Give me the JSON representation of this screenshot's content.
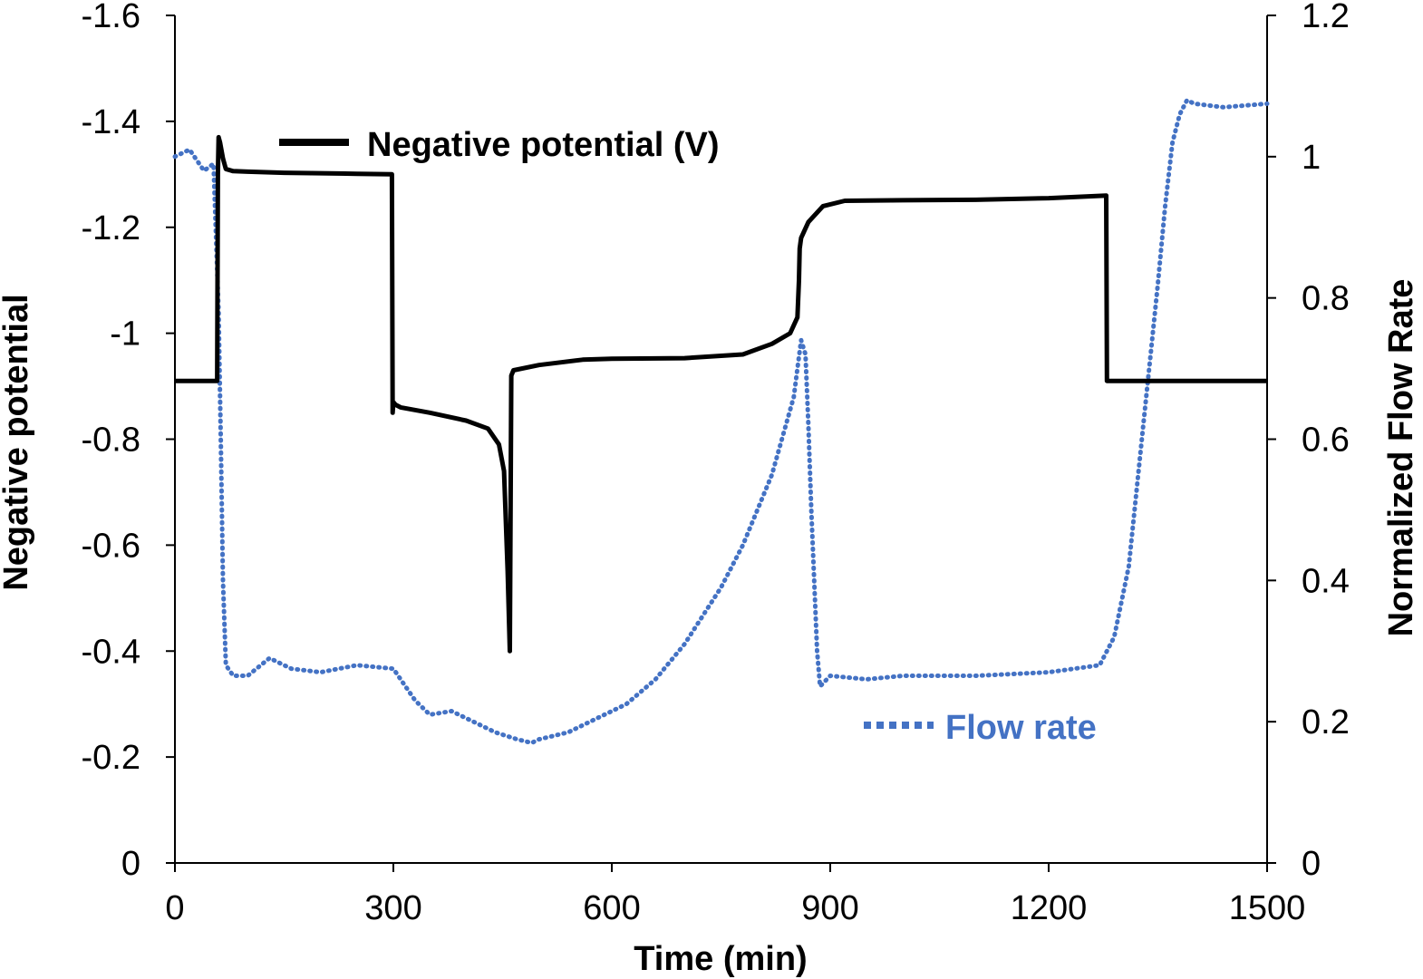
{
  "chart_data": {
    "type": "line",
    "title": "",
    "xlabel": "Time (min)",
    "ylabel_left": "Negative potential",
    "ylabel_right": "Normalized Flow Rate",
    "xlim": [
      0,
      1500
    ],
    "ylim_left": [
      0,
      -1.6
    ],
    "ylim_right": [
      0,
      1.2
    ],
    "left_axis_inverted": true,
    "grid": false,
    "x_ticks": [
      "0",
      "300",
      "600",
      "900",
      "1200",
      "1500"
    ],
    "y_left_ticks": [
      "0",
      "-0.2",
      "-0.4",
      "-0.6",
      "-0.8",
      "-1",
      "-1.2",
      "-1.4",
      "-1.6"
    ],
    "y_right_ticks": [
      "0",
      "0.2",
      "0.4",
      "0.6",
      "0.8",
      "1",
      "1.2"
    ],
    "legend_placement": "inside, labels placed near series",
    "colors": {
      "potential": "#000000",
      "flow": "#4472C4"
    },
    "series": [
      {
        "name": "Negative potential (V)",
        "axis": "left",
        "style": "solid",
        "x": [
          0,
          58,
          59,
          60,
          62,
          66,
          70,
          80,
          100,
          150,
          200,
          250,
          298,
          299,
          300,
          303,
          310,
          350,
          400,
          430,
          445,
          452,
          457,
          460,
          462,
          465,
          500,
          560,
          600,
          700,
          780,
          820,
          845,
          855,
          857,
          858,
          860,
          870,
          890,
          920,
          1000,
          1100,
          1200,
          1279,
          1280,
          1281,
          1500
        ],
        "y": [
          -0.91,
          -0.91,
          -1.3,
          -1.37,
          -1.36,
          -1.33,
          -1.31,
          -1.306,
          -1.305,
          -1.303,
          -1.302,
          -1.301,
          -1.3,
          -0.85,
          -0.87,
          -0.865,
          -0.86,
          -0.85,
          -0.835,
          -0.82,
          -0.79,
          -0.74,
          -0.55,
          -0.4,
          -0.92,
          -0.93,
          -0.94,
          -0.95,
          -0.952,
          -0.953,
          -0.96,
          -0.98,
          -1.0,
          -1.03,
          -1.1,
          -1.16,
          -1.18,
          -1.21,
          -1.24,
          -1.25,
          -1.251,
          -1.252,
          -1.255,
          -1.26,
          -0.91,
          -0.91,
          -0.91
        ]
      },
      {
        "name": "Flow rate",
        "axis": "right",
        "style": "dotted",
        "x": [
          0,
          20,
          40,
          53,
          56,
          60,
          63,
          66,
          70,
          80,
          100,
          130,
          160,
          200,
          250,
          300,
          310,
          330,
          350,
          380,
          410,
          440,
          470,
          490,
          500,
          540,
          580,
          620,
          660,
          700,
          750,
          780,
          820,
          850,
          855,
          860,
          866,
          870,
          874,
          878,
          882,
          886,
          900,
          950,
          1000,
          1100,
          1200,
          1270,
          1290,
          1310,
          1320,
          1330,
          1340,
          1350,
          1360,
          1370,
          1380,
          1390,
          1400,
          1440,
          1500
        ],
        "y": [
          1.0,
          1.01,
          0.98,
          0.99,
          0.9,
          0.78,
          0.6,
          0.4,
          0.28,
          0.265,
          0.265,
          0.29,
          0.275,
          0.27,
          0.28,
          0.275,
          0.26,
          0.23,
          0.21,
          0.215,
          0.2,
          0.185,
          0.175,
          0.17,
          0.175,
          0.185,
          0.205,
          0.225,
          0.26,
          0.31,
          0.39,
          0.45,
          0.55,
          0.66,
          0.7,
          0.74,
          0.72,
          0.62,
          0.5,
          0.4,
          0.3,
          0.25,
          0.265,
          0.26,
          0.265,
          0.265,
          0.27,
          0.28,
          0.32,
          0.42,
          0.52,
          0.62,
          0.72,
          0.82,
          0.93,
          1.02,
          1.06,
          1.08,
          1.075,
          1.07,
          1.075
        ]
      }
    ]
  }
}
